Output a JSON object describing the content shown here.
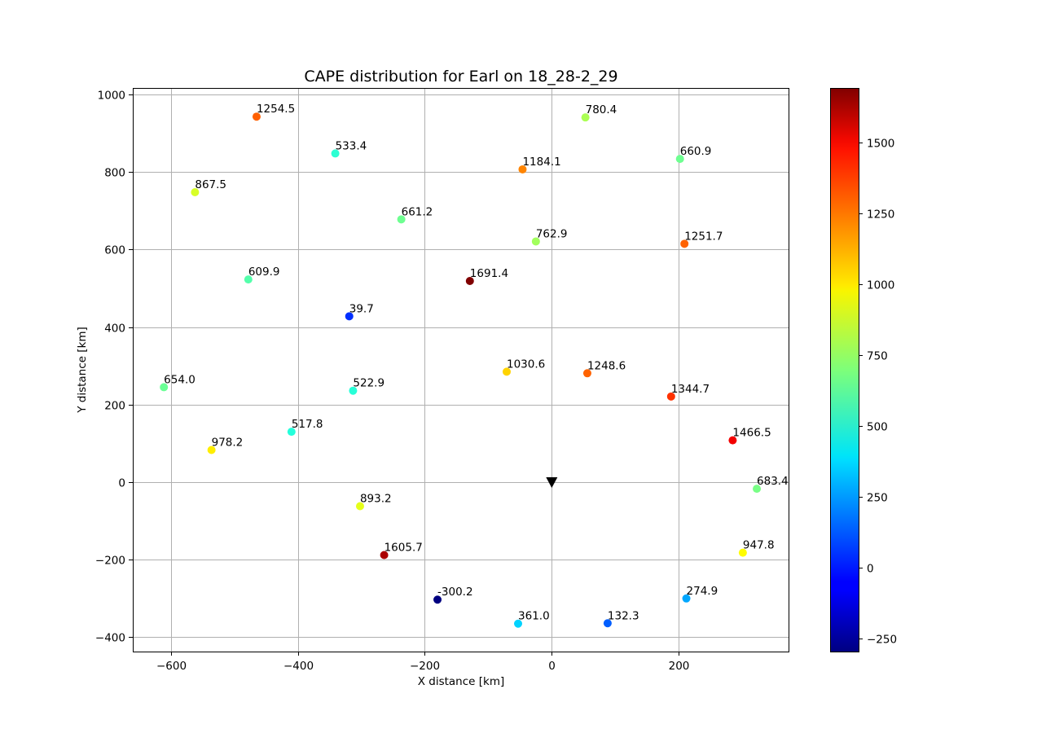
{
  "chart_data": {
    "type": "scatter",
    "title": "CAPE distribution for Earl on 18_28-2_29",
    "xlabel": "X distance [km]",
    "ylabel": "Y distance [km]",
    "xlim": [
      -660,
      373
    ],
    "ylim": [
      -437,
      1017
    ],
    "xticks": [
      -600,
      -400,
      -200,
      0,
      200
    ],
    "yticks": [
      -400,
      -200,
      0,
      200,
      400,
      600,
      800,
      1000
    ],
    "grid": true,
    "colormap": "jet",
    "colorbar": {
      "min": -300.2,
      "max": 1691.4,
      "ticks": [
        -250,
        0,
        250,
        500,
        750,
        1000,
        1250,
        1500
      ]
    },
    "center_marker": {
      "x": 0,
      "y": 0,
      "symbol": "triangle-down",
      "color": "#000000"
    },
    "points": [
      {
        "x": -465,
        "y": 943,
        "value": 1254.5,
        "label": "1254.5"
      },
      {
        "x": -341,
        "y": 848,
        "value": 533.4,
        "label": "533.4"
      },
      {
        "x": 53,
        "y": 941,
        "value": 780.4,
        "label": "780.4"
      },
      {
        "x": -46,
        "y": 807,
        "value": 1184.1,
        "label": "1184.1"
      },
      {
        "x": 202,
        "y": 834,
        "value": 660.9,
        "label": "660.9"
      },
      {
        "x": -562,
        "y": 748,
        "value": 867.5,
        "label": "867.5"
      },
      {
        "x": -237,
        "y": 678,
        "value": 661.2,
        "label": "661.2"
      },
      {
        "x": -25,
        "y": 621,
        "value": 762.9,
        "label": "762.9"
      },
      {
        "x": 209,
        "y": 615,
        "value": 1251.7,
        "label": "1251.7"
      },
      {
        "x": -478,
        "y": 523,
        "value": 609.9,
        "label": "609.9"
      },
      {
        "x": -129,
        "y": 519,
        "value": 1691.4,
        "label": "1691.4"
      },
      {
        "x": -319,
        "y": 428,
        "value": 39.7,
        "label": "39.7"
      },
      {
        "x": -71,
        "y": 285,
        "value": 1030.6,
        "label": "1030.6"
      },
      {
        "x": 56,
        "y": 281,
        "value": 1248.6,
        "label": "1248.6"
      },
      {
        "x": -611,
        "y": 245,
        "value": 654.0,
        "label": "654.0"
      },
      {
        "x": -313,
        "y": 236,
        "value": 522.9,
        "label": "522.9"
      },
      {
        "x": 188,
        "y": 221,
        "value": 1344.7,
        "label": "1344.7"
      },
      {
        "x": -410,
        "y": 130,
        "value": 517.8,
        "label": "517.8"
      },
      {
        "x": 285,
        "y": 108,
        "value": 1466.5,
        "label": "1466.5"
      },
      {
        "x": -536,
        "y": 83,
        "value": 978.2,
        "label": "978.2"
      },
      {
        "x": 323,
        "y": -17,
        "value": 683.4,
        "label": "683.4"
      },
      {
        "x": -302,
        "y": -62,
        "value": 893.2,
        "label": "893.2"
      },
      {
        "x": 301,
        "y": -182,
        "value": 947.8,
        "label": "947.8"
      },
      {
        "x": -264,
        "y": -188,
        "value": 1605.7,
        "label": "1605.7"
      },
      {
        "x": -180,
        "y": -303,
        "value": -300.2,
        "label": "-300.2"
      },
      {
        "x": 212,
        "y": -300,
        "value": 274.9,
        "label": "274.9"
      },
      {
        "x": -53,
        "y": -365,
        "value": 361.0,
        "label": "361.0"
      },
      {
        "x": 88,
        "y": -364,
        "value": 132.3,
        "label": "132.3"
      }
    ]
  }
}
